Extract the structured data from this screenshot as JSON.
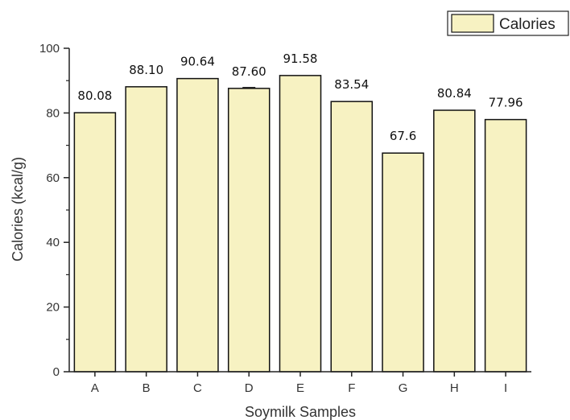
{
  "chart_data": {
    "type": "bar",
    "categories": [
      "A",
      "B",
      "C",
      "D",
      "E",
      "F",
      "G",
      "H",
      "I"
    ],
    "values": [
      80.08,
      88.1,
      90.64,
      87.6,
      91.58,
      83.54,
      67.6,
      80.84,
      77.96
    ],
    "value_labels": [
      "80.08",
      "88.10",
      "90.64",
      "87.60",
      "91.58",
      "83.54",
      "67.6",
      "80.84",
      "77.96"
    ],
    "series": [
      {
        "name": "Calories"
      }
    ],
    "xlabel": "Soymilk Samples",
    "ylabel": "Calories (kcal/g)",
    "ylim": [
      0,
      100
    ],
    "yticks": [
      "0",
      "20",
      "40",
      "60",
      "80",
      "100"
    ],
    "legend_position": "top-right",
    "grid": false,
    "bar_color": "#f7f2c2",
    "bar_edge_color": "#111111"
  }
}
